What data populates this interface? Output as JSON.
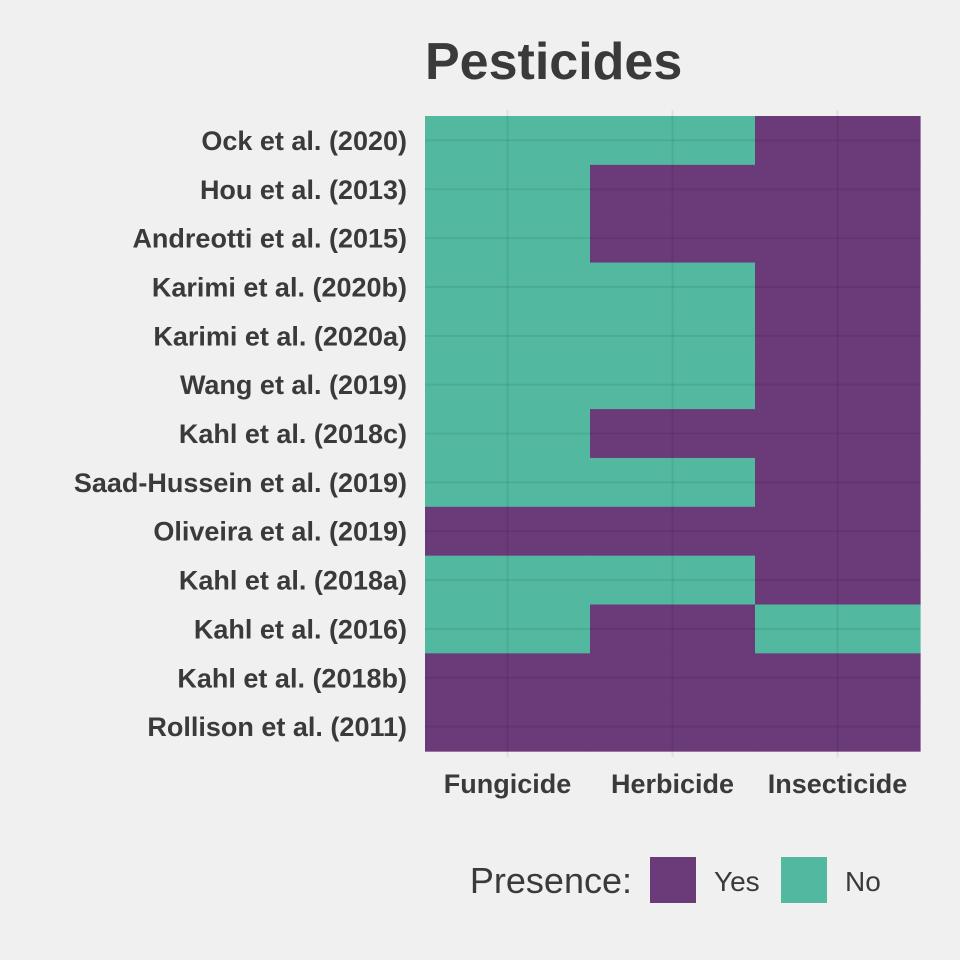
{
  "chart_data": {
    "type": "heatmap",
    "title": "Pesticides",
    "xlabel": "",
    "ylabel": "",
    "columns": [
      "Fungicide",
      "Herbicide",
      "Insecticide"
    ],
    "rows": [
      "Ock et al. (2020)",
      "Hou et al. (2013)",
      "Andreotti et al. (2015)",
      "Karimi et al. (2020b)",
      "Karimi et al. (2020a)",
      "Wang et al. (2019)",
      "Kahl et al. (2018c)",
      "Saad-Hussein et al. (2019)",
      "Oliveira et al. (2019)",
      "Kahl et al. (2018a)",
      "Kahl et al. (2016)",
      "Kahl et al. (2018b)",
      "Rollison et al. (2011)"
    ],
    "values": [
      [
        "No",
        "No",
        "Yes"
      ],
      [
        "No",
        "Yes",
        "Yes"
      ],
      [
        "No",
        "Yes",
        "Yes"
      ],
      [
        "No",
        "No",
        "Yes"
      ],
      [
        "No",
        "No",
        "Yes"
      ],
      [
        "No",
        "No",
        "Yes"
      ],
      [
        "No",
        "Yes",
        "Yes"
      ],
      [
        "No",
        "No",
        "Yes"
      ],
      [
        "Yes",
        "Yes",
        "Yes"
      ],
      [
        "No",
        "No",
        "Yes"
      ],
      [
        "No",
        "Yes",
        "No"
      ],
      [
        "Yes",
        "Yes",
        "Yes"
      ],
      [
        "Yes",
        "Yes",
        "Yes"
      ]
    ],
    "legend": {
      "title": "Presence:",
      "position": "bottom",
      "items": [
        {
          "label": "Yes",
          "color": "#6b3a78"
        },
        {
          "label": "No",
          "color": "#52b9a0"
        }
      ]
    },
    "background_color": "#f0f0f0",
    "grid": true
  }
}
